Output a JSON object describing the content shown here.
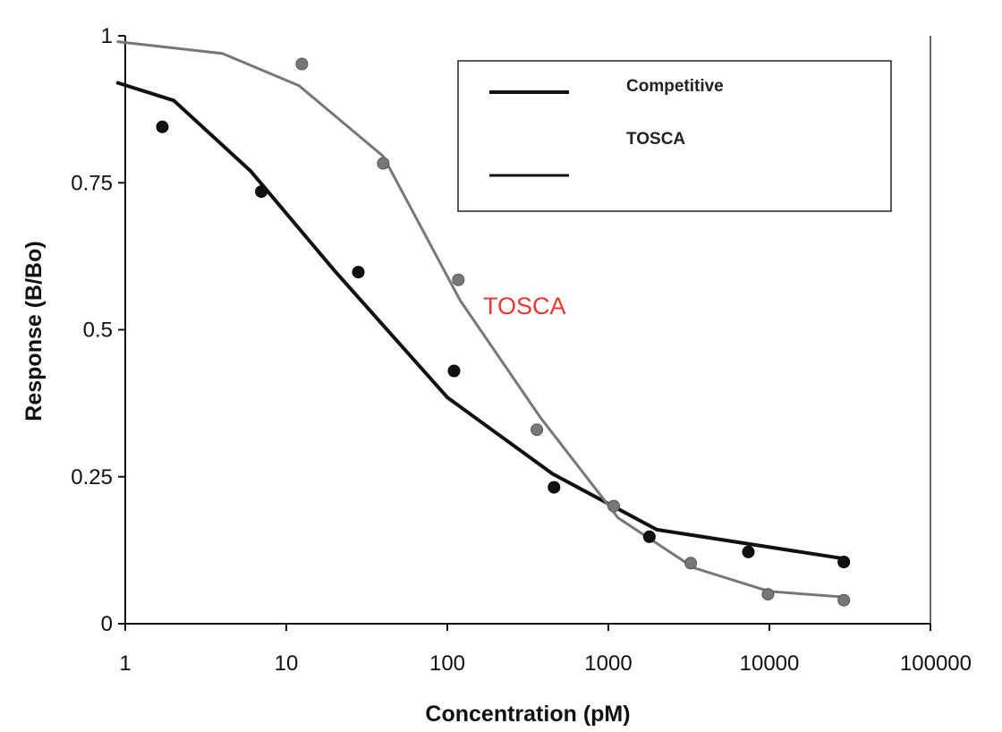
{
  "chart_data": {
    "type": "scatter",
    "title": "",
    "xlabel": "Concentration (pM)",
    "ylabel": "Response (B/Bo)",
    "x_scale": "log",
    "xlim": [
      1,
      100000
    ],
    "ylim": [
      0,
      1
    ],
    "x_ticks": [
      1,
      10,
      100,
      1000,
      10000,
      100000
    ],
    "x_tick_labels": [
      "1",
      "10",
      "100",
      "1000",
      "10000",
      "100000"
    ],
    "y_ticks": [
      0,
      0.25,
      0.5,
      0.75,
      1
    ],
    "y_tick_labels": [
      "0",
      "0.25",
      "0.5",
      "0.75",
      "1"
    ],
    "grid": false,
    "legend": {
      "placement": "top-right",
      "entries": [
        "Competitive",
        "TOSCA"
      ]
    },
    "annotations": [
      {
        "text": "TOSCA",
        "color": "#e53935"
      }
    ],
    "series": [
      {
        "name": "Competitive",
        "color": "#111111",
        "points": [
          [
            1.7,
            0.845
          ],
          [
            7,
            0.735
          ],
          [
            28,
            0.598
          ],
          [
            110,
            0.43
          ],
          [
            460,
            0.232
          ],
          [
            1800,
            0.148
          ],
          [
            7400,
            0.122
          ],
          [
            29000,
            0.105
          ]
        ],
        "curve": [
          [
            0.9,
            0.92
          ],
          [
            2,
            0.89
          ],
          [
            6,
            0.77
          ],
          [
            20,
            0.6
          ],
          [
            100,
            0.385
          ],
          [
            450,
            0.255
          ],
          [
            2000,
            0.16
          ],
          [
            30000,
            0.11
          ]
        ]
      },
      {
        "name": "TOSCA",
        "color": "#777777",
        "points": [
          [
            12.5,
            0.952
          ],
          [
            40,
            0.783
          ],
          [
            117,
            0.585
          ],
          [
            360,
            0.33
          ],
          [
            1080,
            0.2
          ],
          [
            3250,
            0.103
          ],
          [
            9800,
            0.05
          ],
          [
            29000,
            0.04
          ]
        ],
        "curve": [
          [
            0.9,
            0.99
          ],
          [
            4,
            0.97
          ],
          [
            12,
            0.915
          ],
          [
            40,
            0.795
          ],
          [
            120,
            0.55
          ],
          [
            380,
            0.35
          ],
          [
            1150,
            0.18
          ],
          [
            3400,
            0.095
          ],
          [
            10000,
            0.055
          ],
          [
            30000,
            0.045
          ]
        ]
      }
    ]
  }
}
